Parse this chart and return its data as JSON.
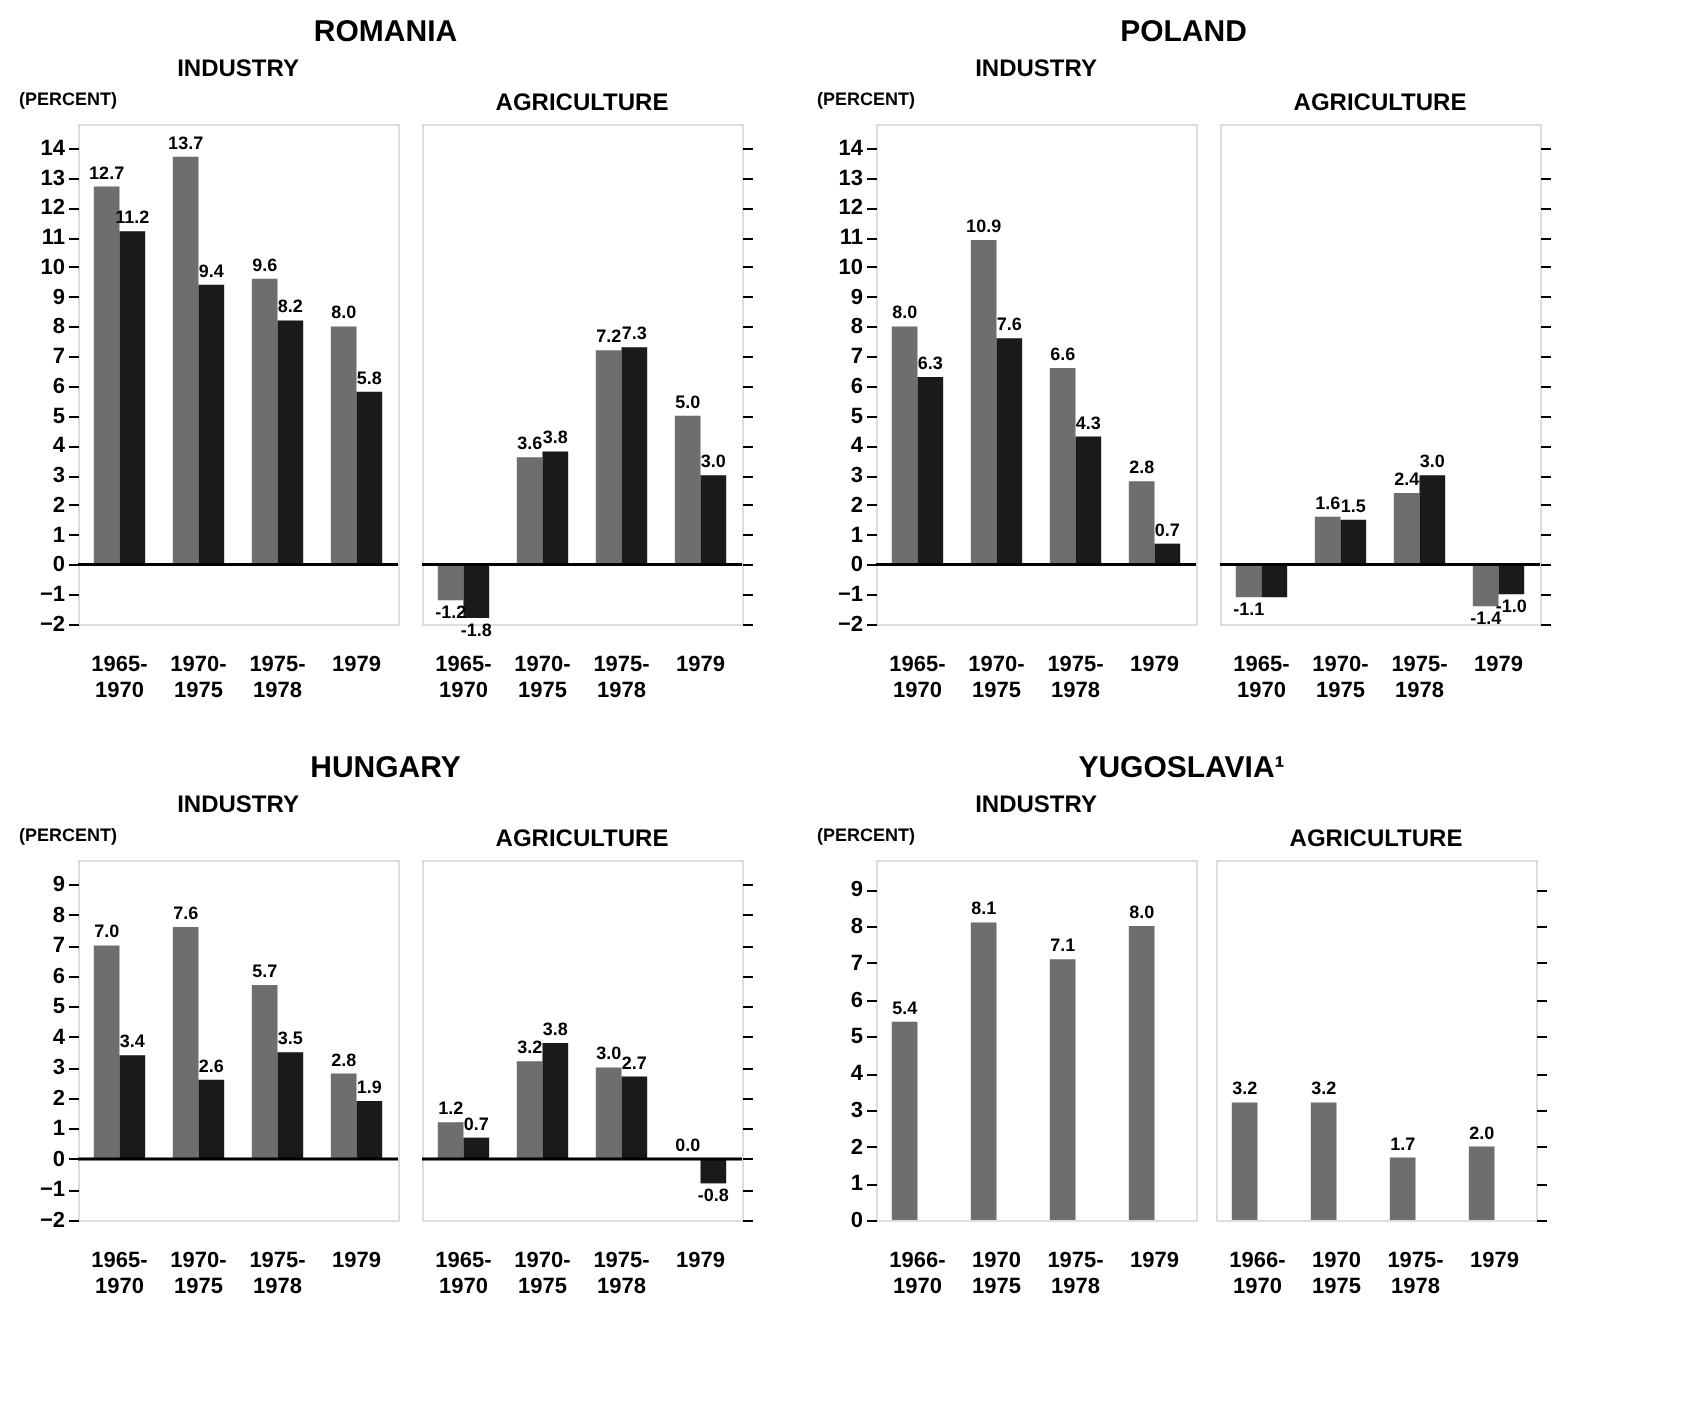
{
  "chart_data": [
    {
      "type": "bar",
      "title": "ROMANIA",
      "subtitle": "INDUSTRY",
      "ylabel": "(PERCENT)",
      "categories": [
        "1965-\n1970",
        "1970-\n1975",
        "1975-\n1978",
        "1979"
      ],
      "ref_lines": [
        {
          "axis": "y",
          "value": 0,
          "color": "#000000"
        }
      ],
      "ylim": [
        -2,
        14.8
      ],
      "yticks": [
        -2,
        -1,
        0,
        1,
        2,
        3,
        4,
        5,
        6,
        7,
        8,
        9,
        10,
        11,
        12,
        13,
        14
      ],
      "grid": false,
      "series": [
        {
          "color": "#6e6e6e",
          "values": [
            12.7,
            13.7,
            9.6,
            8.0
          ],
          "value_labels": [
            "12.7",
            "13.7",
            "9.6",
            "8.0"
          ]
        },
        {
          "color": "#1a1a1a",
          "values": [
            11.2,
            9.4,
            8.2,
            5.8
          ],
          "value_labels": [
            "11.2",
            "9.4",
            "8.2",
            "5.8"
          ]
        }
      ]
    },
    {
      "type": "bar",
      "subtitle": "AGRICULTURE",
      "categories": [
        "1965-\n1970",
        "1970-\n1975",
        "1975-\n1978",
        "1979"
      ],
      "ref_lines": [
        {
          "axis": "y",
          "value": 0,
          "color": "#000000"
        }
      ],
      "ylim": [
        -2,
        14.8
      ],
      "yticks": [
        -2,
        -1,
        0,
        1,
        2,
        3,
        4,
        5,
        6,
        7,
        8,
        9,
        10,
        11,
        12,
        13,
        14
      ],
      "tick_labels": "x",
      "grid": false,
      "series": [
        {
          "color": "#6e6e6e",
          "values": [
            -1.2,
            3.6,
            7.2,
            5.0
          ],
          "value_labels": [
            "-1.2",
            "3.6",
            "7.2",
            "5.0"
          ]
        },
        {
          "color": "#1a1a1a",
          "values": [
            -1.8,
            3.8,
            7.3,
            3.0
          ],
          "value_labels": [
            "-1.8",
            "3.8",
            "7.3",
            "3.0"
          ]
        }
      ]
    },
    {
      "type": "bar",
      "title": "POLAND",
      "subtitle": "INDUSTRY",
      "ylabel": "(PERCENT)",
      "categories": [
        "1965-\n1970",
        "1970-\n1975",
        "1975-\n1978",
        "1979"
      ],
      "ref_lines": [
        {
          "axis": "y",
          "value": 0,
          "color": "#000000"
        }
      ],
      "ylim": [
        -2,
        14.8
      ],
      "yticks": [
        -2,
        -1,
        0,
        1,
        2,
        3,
        4,
        5,
        6,
        7,
        8,
        9,
        10,
        11,
        12,
        13,
        14
      ],
      "grid": false,
      "series": [
        {
          "color": "#6e6e6e",
          "values": [
            8.0,
            10.9,
            6.6,
            2.8
          ],
          "value_labels": [
            "8.0",
            "10.9",
            "6.6",
            "2.8"
          ]
        },
        {
          "color": "#1a1a1a",
          "values": [
            6.3,
            7.6,
            4.3,
            0.7
          ],
          "value_labels": [
            "6.3",
            "7.6",
            "4.3",
            "0.7"
          ]
        }
      ]
    },
    {
      "type": "bar",
      "subtitle": "AGRICULTURE",
      "categories": [
        "1965-\n1970",
        "1970-\n1975",
        "1975-\n1978",
        "1979"
      ],
      "ref_lines": [
        {
          "axis": "y",
          "value": 0,
          "color": "#000000"
        }
      ],
      "ylim": [
        -2,
        14.8
      ],
      "yticks": [
        -2,
        -1,
        0,
        1,
        2,
        3,
        4,
        5,
        6,
        7,
        8,
        9,
        10,
        11,
        12,
        13,
        14
      ],
      "tick_labels": "x",
      "grid": false,
      "series": [
        {
          "color": "#6e6e6e",
          "values": [
            -1.1,
            1.6,
            2.4,
            -1.4
          ],
          "value_labels": [
            "-1.1",
            "1.6",
            "2.4",
            "-1.4"
          ]
        },
        {
          "color": "#1a1a1a",
          "values": [
            -1.1,
            1.5,
            3.0,
            -1.0
          ],
          "value_labels": [
            null,
            "1.5",
            "3.0",
            "-1.0"
          ]
        }
      ]
    },
    {
      "type": "bar",
      "title": "HUNGARY",
      "subtitle": "INDUSTRY",
      "ylabel": "(PERCENT)",
      "categories": [
        "1965-\n1970",
        "1970-\n1975",
        "1975-\n1978",
        "1979"
      ],
      "ref_lines": [
        {
          "axis": "y",
          "value": 0,
          "color": "#000000"
        }
      ],
      "ylim": [
        -2,
        9.8
      ],
      "yticks": [
        -2,
        -1,
        0,
        1,
        2,
        3,
        4,
        5,
        6,
        7,
        8,
        9
      ],
      "grid": false,
      "series": [
        {
          "color": "#6e6e6e",
          "values": [
            7.0,
            7.6,
            5.7,
            2.8
          ],
          "value_labels": [
            "7.0",
            "7.6",
            "5.7",
            "2.8"
          ]
        },
        {
          "color": "#1a1a1a",
          "values": [
            3.4,
            2.6,
            3.5,
            1.9
          ],
          "value_labels": [
            "3.4",
            "2.6",
            "3.5",
            "1.9"
          ]
        }
      ]
    },
    {
      "type": "bar",
      "subtitle": "AGRICULTURE",
      "categories": [
        "1965-\n1970",
        "1970-\n1975",
        "1975-\n1978",
        "1979"
      ],
      "ref_lines": [
        {
          "axis": "y",
          "value": 0,
          "color": "#000000"
        }
      ],
      "ylim": [
        -2,
        9.8
      ],
      "yticks": [
        -2,
        -1,
        0,
        1,
        2,
        3,
        4,
        5,
        6,
        7,
        8,
        9
      ],
      "tick_labels": "x",
      "grid": false,
      "series": [
        {
          "color": "#6e6e6e",
          "values": [
            1.2,
            3.2,
            3.0,
            0.0
          ],
          "value_labels": [
            "1.2",
            "3.2",
            "3.0",
            "0.0"
          ]
        },
        {
          "color": "#1a1a1a",
          "values": [
            0.7,
            3.8,
            2.7,
            -0.8
          ],
          "value_labels": [
            "0.7",
            "3.8",
            "2.7",
            "-0.8"
          ]
        }
      ]
    },
    {
      "type": "bar",
      "title": "YUGOSLAVIA¹",
      "subtitle": "INDUSTRY",
      "ylabel": "(PERCENT)",
      "categories": [
        "1966-\n1970",
        "1970\n1975",
        "1975-\n1978",
        "1979"
      ],
      "ylim": [
        0,
        9.8
      ],
      "yticks": [
        0,
        1,
        2,
        3,
        4,
        5,
        6,
        7,
        8,
        9
      ],
      "grid": false,
      "series": [
        {
          "color": "#6e6e6e",
          "values": [
            5.4,
            8.1,
            7.1,
            8.0
          ],
          "value_labels": [
            "5.4",
            "8.1",
            "7.1",
            "8.0"
          ]
        }
      ]
    },
    {
      "type": "bar",
      "subtitle": "AGRICULTURE",
      "categories": [
        "1966-\n1970",
        "1970\n1975",
        "1975-\n1978",
        "1979"
      ],
      "ylim": [
        0,
        9.8
      ],
      "yticks": [
        0,
        1,
        2,
        3,
        4,
        5,
        6,
        7,
        8,
        9
      ],
      "tick_labels": "x",
      "grid": false,
      "series": [
        {
          "color": "#6e6e6e",
          "values": [
            3.2,
            3.2,
            1.7,
            2.0
          ],
          "value_labels": [
            "3.2",
            "3.2",
            "1.7",
            "2.0"
          ]
        }
      ]
    }
  ]
}
